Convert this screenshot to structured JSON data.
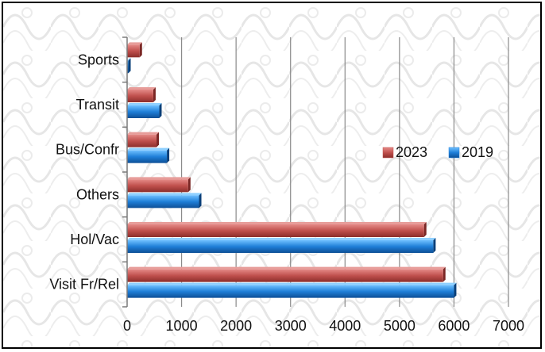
{
  "chart_data": {
    "type": "bar",
    "orientation": "horizontal",
    "categories": [
      "Visit Fr/Rel",
      "Hol/Vac",
      "Others",
      "Bus/Confr",
      "Transit",
      "Sports"
    ],
    "series": [
      {
        "name": "2023",
        "values": [
          5800,
          5450,
          1120,
          540,
          480,
          230
        ],
        "color": "#c0504d"
      },
      {
        "name": "2019",
        "values": [
          6000,
          5620,
          1320,
          730,
          590,
          20
        ],
        "color": "#1f7fd8"
      }
    ],
    "xlim": [
      0,
      7000
    ],
    "xticks": [
      "0",
      "1000",
      "2000",
      "3000",
      "4000",
      "5000",
      "6000",
      "7000"
    ],
    "grid": "vertical",
    "legend_position": "right",
    "background": "decorative tribal pattern watermark"
  }
}
